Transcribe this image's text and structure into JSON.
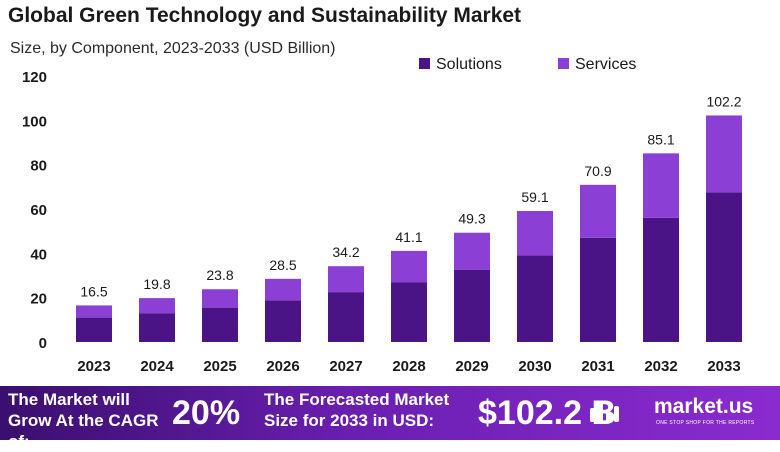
{
  "header": {
    "title": "Global Green Technology and Sustainability Market",
    "subtitle": "Size, by Component, 2023-2033 (USD Billion)"
  },
  "chart_data": {
    "type": "bar",
    "stacked": true,
    "title": "Global Green Technology and Sustainability Market",
    "subtitle": "Size, by Component, 2023-2033 (USD Billion)",
    "categories": [
      "2023",
      "2024",
      "2025",
      "2026",
      "2027",
      "2028",
      "2029",
      "2030",
      "2031",
      "2032",
      "2033"
    ],
    "series": [
      {
        "name": "Solutions",
        "color": "#4a1486",
        "values": [
          11.0,
          13.0,
          15.5,
          18.8,
          22.5,
          27.0,
          32.5,
          39.0,
          47.0,
          56.0,
          67.5
        ]
      },
      {
        "name": "Services",
        "color": "#8b3fd4",
        "values": [
          5.5,
          6.8,
          8.3,
          9.7,
          11.7,
          14.1,
          16.8,
          20.1,
          23.9,
          29.1,
          34.7
        ]
      }
    ],
    "totals": [
      "16.5",
      "19.8",
      "23.8",
      "28.5",
      "34.2",
      "41.1",
      "49.3",
      "59.1",
      "70.9",
      "85.1",
      "102.2"
    ],
    "yticks": [
      "0",
      "20",
      "40",
      "60",
      "80",
      "100",
      "120"
    ],
    "ylim": [
      0,
      120
    ],
    "grid": false,
    "legend_position": "top-right"
  },
  "footer": {
    "cagr_label": "The Market will Grow At the CAGR of:",
    "cagr_value": "20%",
    "forecast_label": "The Forecasted Market Size for 2033 in USD:",
    "forecast_value": "$102.2 B",
    "brand_name": "market.us",
    "brand_tagline": "ONE STOP SHOP FOR THE REPORTS",
    "logo_icon": "market-us-logo-icon"
  }
}
